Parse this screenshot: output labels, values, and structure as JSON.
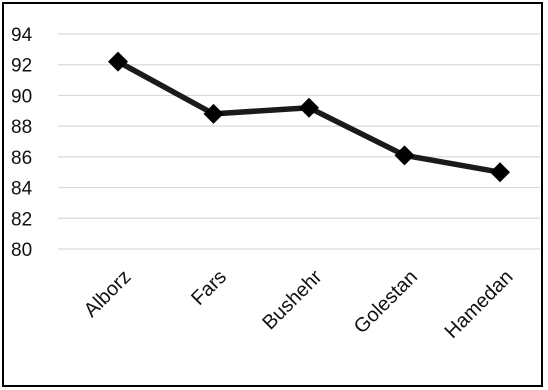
{
  "chart_data": {
    "type": "line",
    "title": "",
    "xlabel": "",
    "ylabel": "",
    "categories": [
      "Alborz",
      "Fars",
      "Bushehr",
      "Golestan",
      "Hamedan"
    ],
    "series": [
      {
        "values": [
          92.2,
          88.8,
          89.2,
          86.1,
          85.0
        ],
        "color": "#1a1a1a",
        "marker": "diamond"
      }
    ],
    "ylim": [
      80,
      94
    ],
    "yticks": [
      80,
      82,
      84,
      86,
      88,
      90,
      92,
      94
    ],
    "grid": true,
    "legend": "none"
  }
}
